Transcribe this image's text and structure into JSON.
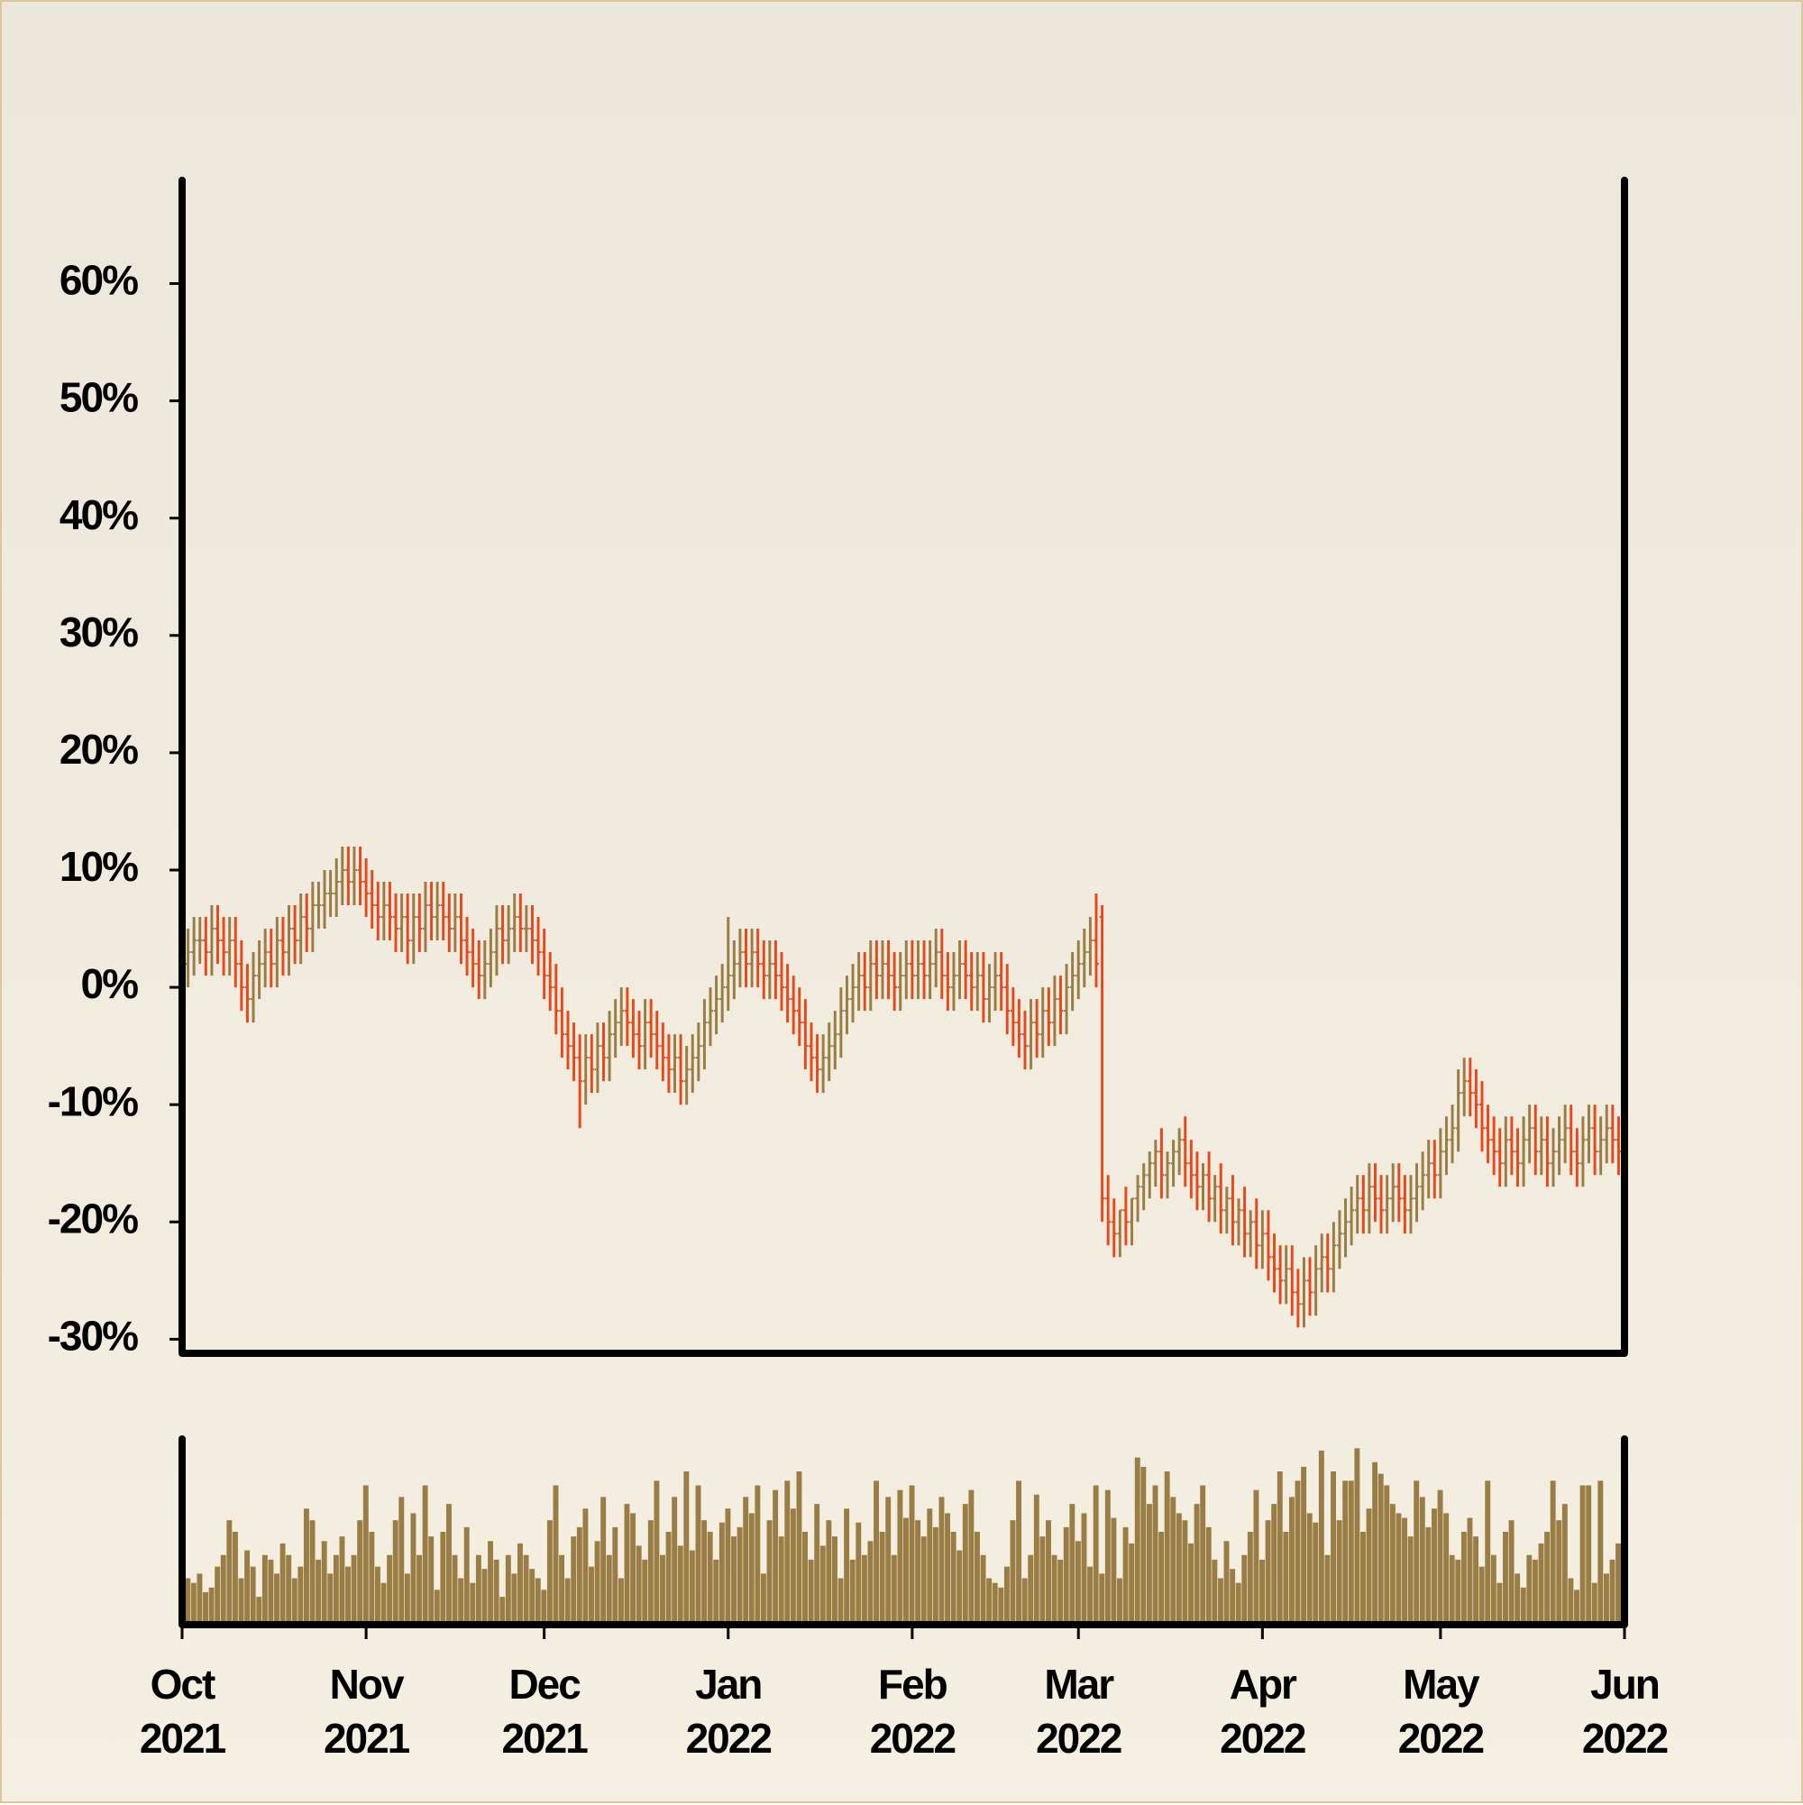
{
  "chart_data": {
    "type": "ohlc",
    "x": [
      1,
      2,
      3,
      4,
      5,
      6,
      7,
      8,
      9,
      10,
      11,
      12,
      13,
      14,
      15,
      16,
      17,
      18,
      19,
      20,
      21,
      22,
      23,
      24,
      25,
      26,
      27,
      28,
      29,
      30,
      31,
      32,
      33,
      34,
      35,
      36,
      37,
      38,
      39,
      40,
      41,
      42,
      43,
      44,
      45,
      46,
      47,
      48,
      49,
      50,
      51,
      52,
      53,
      54,
      55,
      56,
      57,
      58,
      59,
      60,
      61,
      62,
      63,
      64,
      65,
      66,
      67,
      68,
      69,
      70,
      71,
      72,
      73,
      74,
      75,
      76,
      77,
      78,
      79,
      80,
      81,
      82,
      83,
      84,
      85,
      86,
      87,
      88,
      89,
      90,
      91,
      92,
      93,
      94,
      95,
      96,
      97,
      98,
      99,
      100,
      101,
      102,
      103,
      104,
      105,
      106,
      107,
      108,
      109,
      110,
      111,
      112,
      113,
      114,
      115,
      116,
      117,
      118,
      119,
      120,
      121,
      122,
      123,
      124,
      125,
      126,
      127,
      128,
      129,
      130,
      131,
      132,
      133,
      134,
      135,
      136,
      137,
      138,
      139,
      140,
      141,
      142,
      143,
      144,
      145,
      146,
      147,
      148,
      149,
      150,
      151,
      152,
      153,
      154,
      155,
      156,
      157,
      158,
      159,
      160,
      161,
      162,
      163,
      164,
      165,
      166,
      167,
      168,
      169,
      170,
      171,
      172,
      173,
      174,
      175,
      176,
      177,
      178,
      179,
      180,
      181,
      182,
      183,
      184,
      185,
      186,
      187,
      188,
      189,
      190,
      191,
      192,
      193,
      194,
      195,
      196,
      197,
      198,
      199,
      200,
      201,
      202,
      203,
      204,
      205,
      206,
      207,
      208,
      209,
      210,
      211,
      212,
      213,
      214,
      215,
      216,
      217,
      218,
      219,
      220,
      221,
      222,
      223,
      224,
      225,
      226,
      227,
      228,
      229,
      230,
      231,
      232,
      233,
      234,
      235,
      236,
      237,
      238,
      239,
      240,
      241,
      242
    ],
    "open": [
      2,
      3,
      4,
      4,
      3,
      5,
      4,
      3,
      4,
      2,
      0,
      -1,
      1,
      2,
      3,
      2,
      4,
      3,
      5,
      4,
      6,
      5,
      7,
      7,
      8,
      8,
      9,
      10,
      9,
      10,
      9,
      8,
      7,
      6,
      7,
      6,
      5,
      6,
      4,
      6,
      5,
      7,
      6,
      7,
      6,
      5,
      6,
      4,
      3,
      2,
      1,
      2,
      3,
      5,
      4,
      5,
      6,
      5,
      5,
      4,
      3,
      1,
      0,
      -2,
      -4,
      -5,
      -6,
      -8,
      -6,
      -7,
      -5,
      -6,
      -4,
      -3,
      -2,
      -3,
      -4,
      -5,
      -3,
      -4,
      -5,
      -6,
      -7,
      -6,
      -8,
      -7,
      -6,
      -5,
      -3,
      -2,
      -1,
      0,
      1,
      2,
      3,
      2,
      3,
      2,
      1,
      2,
      1,
      0,
      -1,
      -2,
      -3,
      -5,
      -6,
      -7,
      -6,
      -5,
      -4,
      -2,
      -1,
      0,
      1,
      0,
      2,
      1,
      2,
      1,
      0,
      1,
      2,
      1,
      2,
      1,
      2,
      3,
      1,
      0,
      1,
      2,
      1,
      0,
      1,
      -1,
      0,
      1,
      0,
      -2,
      -3,
      -4,
      -5,
      -3,
      -4,
      -2,
      -3,
      -1,
      -2,
      0,
      1,
      2,
      3,
      4,
      6,
      -18,
      -20,
      -21,
      -19,
      -20,
      -18,
      -17,
      -16,
      -15,
      -14,
      -16,
      -15,
      -14,
      -13,
      -15,
      -16,
      -17,
      -16,
      -18,
      -17,
      -19,
      -18,
      -20,
      -19,
      -21,
      -20,
      -22,
      -21,
      -23,
      -24,
      -25,
      -24,
      -26,
      -27,
      -25,
      -26,
      -24,
      -23,
      -24,
      -22,
      -21,
      -20,
      -19,
      -18,
      -19,
      -17,
      -18,
      -19,
      -18,
      -17,
      -18,
      -19,
      -18,
      -17,
      -16,
      -15,
      -16,
      -14,
      -13,
      -12,
      -9,
      -8,
      -9,
      -10,
      -12,
      -13,
      -14,
      -15,
      -13,
      -14,
      -15,
      -13,
      -12,
      -14,
      -13,
      -15,
      -14,
      -13,
      -12,
      -14,
      -15,
      -13,
      -12,
      -14,
      -13,
      -12,
      -13
    ],
    "high": [
      5,
      6,
      6,
      6,
      7,
      7,
      6,
      6,
      6,
      4,
      2,
      3,
      4,
      5,
      5,
      6,
      6,
      7,
      7,
      8,
      8,
      9,
      9,
      10,
      10,
      11,
      12,
      12,
      12,
      12,
      11,
      10,
      9,
      9,
      9,
      8,
      8,
      8,
      8,
      8,
      9,
      9,
      9,
      9,
      8,
      8,
      8,
      6,
      5,
      4,
      4,
      5,
      7,
      7,
      7,
      8,
      8,
      7,
      7,
      6,
      5,
      3,
      2,
      0,
      -2,
      -3,
      -4,
      -4,
      -4,
      -3,
      -3,
      -2,
      -1,
      0,
      0,
      -1,
      -2,
      -1,
      -1,
      -2,
      -3,
      -4,
      -4,
      -4,
      -5,
      -4,
      -3,
      -1,
      0,
      1,
      2,
      6,
      4,
      5,
      5,
      5,
      5,
      4,
      4,
      4,
      3,
      2,
      1,
      0,
      -1,
      -3,
      -4,
      -4,
      -3,
      -2,
      0,
      1,
      2,
      3,
      3,
      4,
      4,
      4,
      4,
      3,
      3,
      4,
      4,
      4,
      4,
      4,
      5,
      5,
      3,
      3,
      4,
      4,
      3,
      3,
      3,
      2,
      3,
      3,
      2,
      0,
      -1,
      -2,
      -1,
      -1,
      0,
      0,
      1,
      1,
      2,
      3,
      4,
      5,
      6,
      8,
      7,
      -16,
      -18,
      -19,
      -17,
      -18,
      -16,
      -15,
      -14,
      -13,
      -12,
      -14,
      -13,
      -12,
      -11,
      -13,
      -14,
      -15,
      -14,
      -16,
      -15,
      -17,
      -16,
      -18,
      -17,
      -19,
      -18,
      -19,
      -19,
      -21,
      -22,
      -22,
      -22,
      -24,
      -23,
      -23,
      -22,
      -21,
      -21,
      -20,
      -19,
      -18,
      -17,
      -16,
      -16,
      -15,
      -15,
      -16,
      -16,
      -15,
      -15,
      -16,
      -16,
      -15,
      -14,
      -13,
      -13,
      -12,
      -11,
      -10,
      -7,
      -6,
      -6,
      -7,
      -8,
      -10,
      -11,
      -12,
      -11,
      -11,
      -12,
      -11,
      -10,
      -10,
      -11,
      -11,
      -12,
      -11,
      -10,
      -10,
      -12,
      -11,
      -10,
      -10,
      -11,
      -10,
      -10,
      -11
    ],
    "low": [
      0,
      1,
      2,
      1,
      1,
      2,
      1,
      1,
      0,
      -2,
      -3,
      -3,
      -1,
      0,
      0,
      0,
      1,
      1,
      2,
      2,
      3,
      3,
      5,
      5,
      6,
      6,
      7,
      7,
      7,
      7,
      6,
      5,
      4,
      4,
      4,
      3,
      3,
      2,
      2,
      3,
      3,
      4,
      4,
      4,
      3,
      3,
      2,
      1,
      0,
      -1,
      -1,
      0,
      1,
      2,
      2,
      3,
      3,
      3,
      2,
      1,
      -1,
      -2,
      -4,
      -6,
      -7,
      -8,
      -12,
      -10,
      -9,
      -9,
      -8,
      -8,
      -6,
      -5,
      -5,
      -6,
      -7,
      -7,
      -6,
      -7,
      -8,
      -9,
      -9,
      -10,
      -10,
      -9,
      -8,
      -7,
      -5,
      -4,
      -3,
      -2,
      -1,
      0,
      0,
      0,
      0,
      -1,
      -1,
      -1,
      -2,
      -3,
      -4,
      -5,
      -7,
      -8,
      -9,
      -9,
      -8,
      -7,
      -6,
      -4,
      -3,
      -2,
      -2,
      -2,
      -1,
      -1,
      -1,
      -2,
      -2,
      -1,
      -1,
      -1,
      -1,
      -1,
      0,
      -1,
      -2,
      -2,
      -1,
      -1,
      -2,
      -2,
      -3,
      -3,
      -2,
      -2,
      -4,
      -5,
      -6,
      -7,
      -7,
      -6,
      -6,
      -5,
      -5,
      -4,
      -4,
      -2,
      -1,
      0,
      1,
      0,
      -20,
      -22,
      -23,
      -23,
      -22,
      -22,
      -20,
      -19,
      -18,
      -17,
      -18,
      -18,
      -17,
      -16,
      -17,
      -18,
      -19,
      -19,
      -20,
      -20,
      -21,
      -21,
      -22,
      -22,
      -23,
      -23,
      -24,
      -24,
      -25,
      -26,
      -27,
      -27,
      -28,
      -29,
      -29,
      -28,
      -28,
      -26,
      -26,
      -26,
      -24,
      -23,
      -22,
      -21,
      -21,
      -21,
      -20,
      -21,
      -21,
      -20,
      -20,
      -21,
      -21,
      -20,
      -19,
      -18,
      -18,
      -18,
      -16,
      -15,
      -14,
      -11,
      -11,
      -12,
      -14,
      -15,
      -16,
      -17,
      -17,
      -16,
      -17,
      -17,
      -15,
      -16,
      -16,
      -17,
      -17,
      -16,
      -15,
      -16,
      -17,
      -17,
      -15,
      -16,
      -16,
      -15,
      -15,
      -16
    ],
    "close": [
      3,
      4,
      4,
      3,
      5,
      4,
      3,
      4,
      2,
      0,
      -1,
      1,
      2,
      3,
      2,
      4,
      3,
      5,
      4,
      6,
      5,
      7,
      7,
      8,
      8,
      9,
      10,
      9,
      10,
      9,
      8,
      7,
      6,
      7,
      6,
      5,
      6,
      4,
      6,
      5,
      7,
      6,
      7,
      6,
      5,
      6,
      4,
      3,
      2,
      1,
      2,
      3,
      5,
      4,
      5,
      6,
      5,
      5,
      4,
      3,
      1,
      0,
      -2,
      -4,
      -5,
      -6,
      -8,
      -6,
      -7,
      -5,
      -6,
      -4,
      -3,
      -2,
      -3,
      -4,
      -5,
      -3,
      -4,
      -5,
      -6,
      -7,
      -6,
      -8,
      -7,
      -6,
      -5,
      -3,
      -2,
      -1,
      0,
      1,
      2,
      3,
      2,
      3,
      2,
      1,
      2,
      1,
      0,
      -1,
      -2,
      -3,
      -5,
      -6,
      -7,
      -6,
      -5,
      -4,
      -2,
      -1,
      0,
      1,
      0,
      2,
      1,
      2,
      1,
      0,
      1,
      2,
      1,
      2,
      1,
      2,
      3,
      1,
      0,
      1,
      2,
      1,
      0,
      1,
      -1,
      0,
      1,
      0,
      -2,
      -3,
      -4,
      -5,
      -3,
      -4,
      -2,
      -3,
      -1,
      -2,
      0,
      1,
      2,
      3,
      4,
      2,
      -18,
      -20,
      -21,
      -19,
      -20,
      -18,
      -17,
      -16,
      -15,
      -14,
      -16,
      -15,
      -14,
      -13,
      -15,
      -16,
      -17,
      -16,
      -18,
      -17,
      -19,
      -18,
      -20,
      -19,
      -21,
      -20,
      -22,
      -21,
      -23,
      -24,
      -25,
      -24,
      -26,
      -27,
      -25,
      -26,
      -24,
      -23,
      -24,
      -22,
      -21,
      -20,
      -19,
      -18,
      -19,
      -17,
      -18,
      -19,
      -18,
      -17,
      -18,
      -19,
      -18,
      -17,
      -16,
      -15,
      -16,
      -14,
      -13,
      -12,
      -9,
      -8,
      -9,
      -10,
      -12,
      -13,
      -14,
      -15,
      -13,
      -14,
      -15,
      -13,
      -12,
      -14,
      -13,
      -15,
      -14,
      -13,
      -12,
      -14,
      -15,
      -13,
      -12,
      -14,
      -13,
      -12,
      -13,
      -14
    ],
    "volume": [
      20,
      18,
      22,
      14,
      16,
      25,
      30,
      45,
      40,
      20,
      32,
      25,
      12,
      30,
      28,
      22,
      35,
      30,
      20,
      25,
      50,
      45,
      28,
      36,
      22,
      30,
      38,
      25,
      30,
      45,
      60,
      40,
      25,
      18,
      30,
      45,
      55,
      22,
      48,
      30,
      60,
      38,
      15,
      40,
      52,
      30,
      20,
      42,
      18,
      30,
      24,
      36,
      28,
      12,
      30,
      22,
      35,
      30,
      24,
      20,
      15,
      45,
      60,
      30,
      20,
      38,
      42,
      50,
      25,
      36,
      55,
      30,
      42,
      20,
      52,
      48,
      34,
      28,
      45,
      62,
      30,
      40,
      55,
      34,
      66,
      32,
      60,
      45,
      40,
      28,
      44,
      50,
      38,
      42,
      55,
      48,
      60,
      22,
      45,
      58,
      38,
      62,
      50,
      66,
      40,
      28,
      52,
      34,
      45,
      38,
      20,
      50,
      28,
      44,
      30,
      36,
      62,
      40,
      55,
      30,
      58,
      46,
      60,
      45,
      38,
      50,
      42,
      55,
      48,
      40,
      32,
      52,
      58,
      40,
      30,
      20,
      18,
      16,
      25,
      45,
      62,
      20,
      30,
      56,
      38,
      45,
      30,
      28,
      42,
      52,
      36,
      48,
      25,
      60,
      22,
      58,
      46,
      20,
      42,
      35,
      72,
      68,
      52,
      60,
      40,
      66,
      55,
      48,
      45,
      35,
      52,
      60,
      42,
      28,
      20,
      36,
      24,
      18,
      30,
      40,
      58,
      28,
      45,
      52,
      66,
      40,
      55,
      62,
      68,
      48,
      44,
      75,
      30,
      66,
      45,
      62,
      62,
      76,
      40,
      50,
      70,
      65,
      60,
      52,
      48,
      46,
      38,
      62,
      55,
      42,
      50,
      58,
      48,
      30,
      28,
      40,
      46,
      38,
      25,
      62,
      30,
      18,
      40,
      45,
      22,
      16,
      30,
      28,
      35,
      40,
      62,
      45,
      52,
      20,
      15,
      60,
      60,
      18,
      62,
      22,
      28,
      35
    ],
    "up_color": "#9a7d45",
    "down_color": "#e8481c",
    "volume_color": "#9a7d45",
    "xlim": [
      0,
      243
    ],
    "xticks": [
      {
        "value": 0,
        "label": "Oct\n2021"
      },
      {
        "value": 31,
        "label": "Nov\n2021"
      },
      {
        "value": 61,
        "label": "Dec\n2021"
      },
      {
        "value": 92,
        "label": "Jan\n2022"
      },
      {
        "value": 123,
        "label": "Feb\n2022"
      },
      {
        "value": 151,
        "label": "Mar\n2022"
      },
      {
        "value": 182,
        "label": "Apr\n2022"
      },
      {
        "value": 212,
        "label": "May\n2022"
      },
      {
        "value": 243,
        "label": "Jun\n2022"
      }
    ],
    "ylim": [
      -31.2,
      68.8
    ],
    "yticks": [
      {
        "value": -30,
        "label": "-30%"
      },
      {
        "value": -20,
        "label": "-20%"
      },
      {
        "value": -10,
        "label": "-10%"
      },
      {
        "value": 0,
        "label": "0%"
      },
      {
        "value": 10,
        "label": "10%"
      },
      {
        "value": 20,
        "label": "20%"
      },
      {
        "value": 30,
        "label": "30%"
      },
      {
        "value": 40,
        "label": "40%"
      },
      {
        "value": 50,
        "label": "50%"
      },
      {
        "value": 60,
        "label": "60%"
      }
    ],
    "vlim": [
      0,
      80
    ]
  }
}
